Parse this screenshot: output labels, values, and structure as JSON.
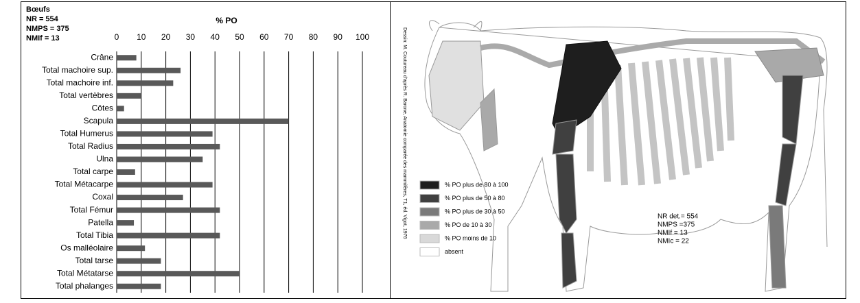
{
  "chart_data": {
    "type": "hbar",
    "title": "% PO",
    "annotations": [
      "Bœufs",
      "NR = 554",
      "NMPS = 375",
      "NMIf = 13"
    ],
    "categories": [
      "Crâne",
      "Total machoire sup.",
      "Total machoire inf.",
      "Total vertèbres",
      "Côtes",
      "Scapula",
      "Total Humerus",
      "Total Radius",
      "Ulna",
      "Total carpe",
      "Total Métacarpe",
      "Coxal",
      "Total Fémur",
      "Patella",
      "Total Tibia",
      "Os malléolaire",
      "Total tarse",
      "Total Métatarse",
      "Total phalanges"
    ],
    "values": [
      8,
      26,
      23,
      10,
      3,
      70,
      39,
      42,
      35,
      7.5,
      39,
      27,
      42,
      7,
      42,
      11.5,
      18,
      50,
      18
    ],
    "color": "#595959",
    "xlim": [
      0,
      100
    ],
    "xticks": [
      0,
      10,
      20,
      30,
      40,
      50,
      60,
      70,
      80,
      90,
      100
    ],
    "grid": true
  },
  "diagram": {
    "credit": "Dessin: M. Coutureau d'après R. Barone, Anatomie comparée des mammifères, T1, éd. Vigot, 1976",
    "legend": [
      {
        "label": "% PO plus de 80 à 100",
        "color": "#1e1e1e"
      },
      {
        "label": "% PO  plus de 50 à 80",
        "color": "#404040"
      },
      {
        "label": "% PO plus de 30 à 50",
        "color": "#7a7a7a"
      },
      {
        "label": "% PO de 10 à 30",
        "color": "#a9a9a9"
      },
      {
        "label": "% PO moins de 10",
        "color": "#d9d9d9"
      },
      {
        "label": "absent",
        "color": "#ffffff"
      }
    ],
    "stats": [
      "NR det.= 554",
      "NMPS =375",
      "NMIf = 13",
      "NMIc = 22"
    ]
  }
}
